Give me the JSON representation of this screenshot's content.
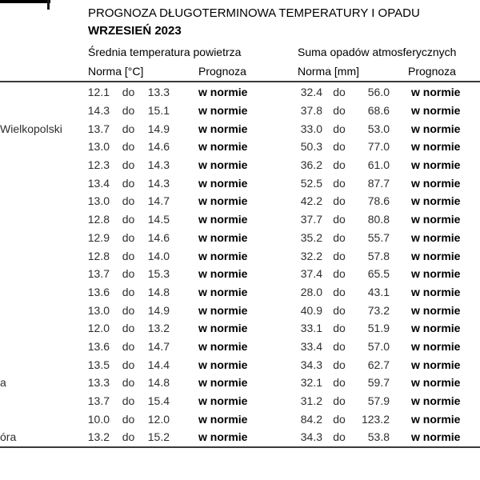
{
  "page": {
    "title": "PROGNOZA DŁUGOTERMINOWA TEMPERATURY I OPADU",
    "subtitle": "WRZESIEŃ 2023"
  },
  "table": {
    "group_headers": {
      "temperature": "Średnia temperatura powietrza",
      "precipitation": "Suma opadów atmosferycznych"
    },
    "column_headers": {
      "temp_norm": "Norma [°C]",
      "temp_forecast": "Prognoza",
      "precip_norm": "Norma [mm]",
      "precip_forecast": "Prognoza"
    },
    "separator": "do",
    "rows": [
      {
        "city": "",
        "tmin": "12.1",
        "tmax": "13.3",
        "tprog": "w normie",
        "pmin": "32.4",
        "pmax": "56.0",
        "pprog": "w normie"
      },
      {
        "city": "",
        "tmin": "14.3",
        "tmax": "15.1",
        "tprog": "w normie",
        "pmin": "37.8",
        "pmax": "68.6",
        "pprog": "w normie"
      },
      {
        "city": "Wielkopolski",
        "tmin": "13.7",
        "tmax": "14.9",
        "tprog": "w normie",
        "pmin": "33.0",
        "pmax": "53.0",
        "pprog": "w normie"
      },
      {
        "city": "",
        "tmin": "13.0",
        "tmax": "14.6",
        "tprog": "w normie",
        "pmin": "50.3",
        "pmax": "77.0",
        "pprog": "w normie"
      },
      {
        "city": "",
        "tmin": "12.3",
        "tmax": "14.3",
        "tprog": "w normie",
        "pmin": "36.2",
        "pmax": "61.0",
        "pprog": "w normie"
      },
      {
        "city": "",
        "tmin": "13.4",
        "tmax": "14.3",
        "tprog": "w normie",
        "pmin": "52.5",
        "pmax": "87.7",
        "pprog": "w normie"
      },
      {
        "city": "",
        "tmin": "13.0",
        "tmax": "14.7",
        "tprog": "w normie",
        "pmin": "42.2",
        "pmax": "78.6",
        "pprog": "w normie"
      },
      {
        "city": "",
        "tmin": "12.8",
        "tmax": "14.5",
        "tprog": "w normie",
        "pmin": "37.7",
        "pmax": "80.8",
        "pprog": "w normie"
      },
      {
        "city": "",
        "tmin": "12.9",
        "tmax": "14.6",
        "tprog": "w normie",
        "pmin": "35.2",
        "pmax": "55.7",
        "pprog": "w normie"
      },
      {
        "city": "",
        "tmin": "12.8",
        "tmax": "14.0",
        "tprog": "w normie",
        "pmin": "32.2",
        "pmax": "57.8",
        "pprog": "w normie"
      },
      {
        "city": "",
        "tmin": "13.7",
        "tmax": "15.3",
        "tprog": "w normie",
        "pmin": "37.4",
        "pmax": "65.5",
        "pprog": "w normie"
      },
      {
        "city": "",
        "tmin": "13.6",
        "tmax": "14.8",
        "tprog": "w normie",
        "pmin": "28.0",
        "pmax": "43.1",
        "pprog": "w normie"
      },
      {
        "city": "",
        "tmin": "13.0",
        "tmax": "14.9",
        "tprog": "w normie",
        "pmin": "40.9",
        "pmax": "73.2",
        "pprog": "w normie"
      },
      {
        "city": "",
        "tmin": "12.0",
        "tmax": "13.2",
        "tprog": "w normie",
        "pmin": "33.1",
        "pmax": "51.9",
        "pprog": "w normie"
      },
      {
        "city": "",
        "tmin": "13.6",
        "tmax": "14.7",
        "tprog": "w normie",
        "pmin": "33.4",
        "pmax": "57.0",
        "pprog": "w normie"
      },
      {
        "city": "",
        "tmin": "13.5",
        "tmax": "14.4",
        "tprog": "w normie",
        "pmin": "34.3",
        "pmax": "62.7",
        "pprog": "w normie"
      },
      {
        "city": "a",
        "tmin": "13.3",
        "tmax": "14.8",
        "tprog": "w normie",
        "pmin": "32.1",
        "pmax": "59.7",
        "pprog": "w normie"
      },
      {
        "city": "",
        "tmin": "13.7",
        "tmax": "15.4",
        "tprog": "w normie",
        "pmin": "31.2",
        "pmax": "57.9",
        "pprog": "w normie"
      },
      {
        "city": "",
        "tmin": "10.0",
        "tmax": "12.0",
        "tprog": "w normie",
        "pmin": "84.2",
        "pmax": "123.2",
        "pprog": "w normie"
      },
      {
        "city": "óra",
        "tmin": "13.2",
        "tmax": "15.2",
        "tprog": "w normie",
        "pmin": "34.3",
        "pmax": "53.8",
        "pprog": "w normie"
      }
    ]
  }
}
